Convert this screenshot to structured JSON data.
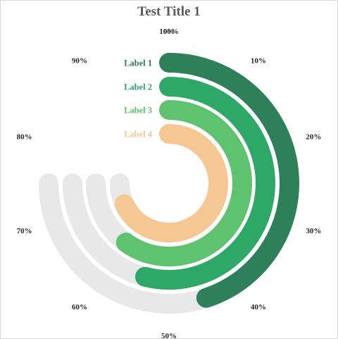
{
  "chart_data": {
    "type": "radial-bar",
    "title": "Test Title 1",
    "axis_max_percent": 100,
    "track_extent_percent": 75,
    "ticks": [
      "0%",
      "10%",
      "20%",
      "30%",
      "40%",
      "50%",
      "60%",
      "70%",
      "80%",
      "90%",
      "100%"
    ],
    "track_color": "#e8e8e8",
    "series": [
      {
        "name": "Label 1",
        "value": 45,
        "color": "#2e8059"
      },
      {
        "name": "Label 2",
        "value": 54,
        "color": "#2ea867"
      },
      {
        "name": "Label 3",
        "value": 60,
        "color": "#5ec26e"
      },
      {
        "name": "Label 4",
        "value": 68,
        "color": "#f5c893"
      }
    ]
  }
}
